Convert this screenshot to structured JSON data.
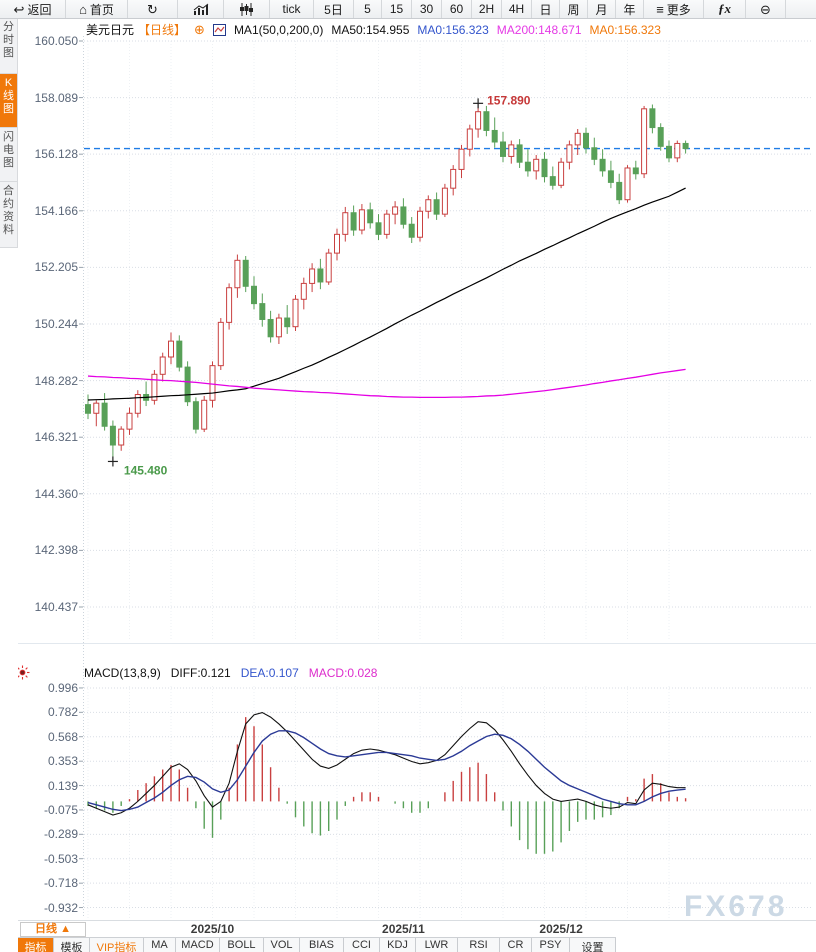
{
  "toolbar": {
    "items": [
      {
        "id": "back",
        "icon": "back-arrow",
        "label": "返回"
      },
      {
        "id": "home",
        "icon": "home",
        "label": "首页"
      },
      {
        "id": "refresh",
        "icon": "refresh",
        "label": ""
      },
      {
        "id": "chart-line",
        "icon": "bar-chart",
        "label": ""
      },
      {
        "id": "chart-candle",
        "icon": "candles",
        "label": ""
      },
      {
        "id": "tick",
        "label": "tick"
      },
      {
        "id": "5d",
        "label": "5日"
      },
      {
        "id": "m5",
        "label": "5"
      },
      {
        "id": "m15",
        "label": "15"
      },
      {
        "id": "m30",
        "label": "30"
      },
      {
        "id": "m60",
        "label": "60"
      },
      {
        "id": "h2",
        "label": "2H"
      },
      {
        "id": "h4",
        "label": "4H"
      },
      {
        "id": "day",
        "label": "日"
      },
      {
        "id": "week",
        "label": "周"
      },
      {
        "id": "month",
        "label": "月"
      },
      {
        "id": "year",
        "label": "年"
      },
      {
        "id": "more",
        "icon": "menu",
        "label": "更多"
      },
      {
        "id": "fx-functions",
        "icon": "fx",
        "label": ""
      },
      {
        "id": "zoom-out",
        "icon": "zoom-out",
        "label": ""
      }
    ]
  },
  "sidebar": {
    "tabs": [
      {
        "id": "time-share",
        "label": "分时图",
        "active": false
      },
      {
        "id": "kline",
        "label": "K线图",
        "active": true
      },
      {
        "id": "lightning",
        "label": "闪电图",
        "active": false
      },
      {
        "id": "contract-info",
        "label": "合约资料",
        "active": false
      }
    ]
  },
  "header": {
    "symbol": "美元日元",
    "period": "【日线】",
    "ma_params": "MA1(50,0,200,0)",
    "ma50": "MA50:154.955",
    "ma0_blue": "MA0:156.323",
    "ma200": "MA200:148.671",
    "ma0_orange": "MA0:156.323"
  },
  "macd_header": {
    "params": "MACD(13,8,9)",
    "diff": "DIFF:0.121",
    "dea": "DEA:0.107",
    "macd": "MACD:0.028"
  },
  "price_axis": [
    "160.050",
    "158.089",
    "156.128",
    "154.166",
    "152.205",
    "150.244",
    "148.282",
    "146.321",
    "144.360",
    "142.398",
    "140.437"
  ],
  "macd_axis": [
    "0.996",
    "0.782",
    "0.568",
    "0.353",
    "0.139",
    "-0.075",
    "-0.289",
    "-0.503",
    "-0.718",
    "-0.932"
  ],
  "annotations": {
    "high": "157.890",
    "low": "145.480"
  },
  "xaxis": {
    "period_label": "日线 ▲"
  },
  "bottom_tabs": [
    {
      "id": "indicators",
      "label": "指标",
      "style": "active"
    },
    {
      "id": "templates",
      "label": "模板",
      "style": ""
    },
    {
      "id": "vip-indicators",
      "label": "VIP指标",
      "style": "vip"
    },
    {
      "id": "ma",
      "label": "MA",
      "style": ""
    },
    {
      "id": "macd",
      "label": "MACD",
      "style": ""
    },
    {
      "id": "boll",
      "label": "BOLL",
      "style": ""
    },
    {
      "id": "vol",
      "label": "VOL",
      "style": ""
    },
    {
      "id": "bias",
      "label": "BIAS",
      "style": ""
    },
    {
      "id": "cci",
      "label": "CCI",
      "style": ""
    },
    {
      "id": "kdj",
      "label": "KDJ",
      "style": ""
    },
    {
      "id": "lwr",
      "label": "LWR",
      "style": ""
    },
    {
      "id": "rsi",
      "label": "RSI",
      "style": ""
    },
    {
      "id": "cr",
      "label": "CR",
      "style": ""
    },
    {
      "id": "psy",
      "label": "PSY",
      "style": ""
    },
    {
      "id": "settings",
      "label": "设置",
      "style": ""
    }
  ],
  "watermark": "FX678",
  "colors": {
    "up": "#c94040",
    "down": "#58a058",
    "ma50": "#000000",
    "ma200": "#e400e4",
    "diff": "#111111",
    "dea": "#2b3a96",
    "last_price_line": "#1f7ce6",
    "annotation_high": "#c63838",
    "annotation_low": "#4a9a4a",
    "accent_orange": "#f0780a",
    "header_blue": "#3355cc",
    "header_magenta": "#e53ae5",
    "macd_magenta": "#dd2ccc",
    "watermark": "#ccd9e5"
  },
  "chart_data": {
    "type": "candlestick",
    "symbol": "美元日元 (USD/JPY) 日线",
    "price_axis_ticks": [
      160.05,
      158.089,
      156.128,
      154.166,
      152.205,
      150.244,
      148.282,
      146.321,
      144.36,
      142.398,
      140.437
    ],
    "macd_axis_ticks": [
      0.996,
      0.782,
      0.568,
      0.353,
      0.139,
      -0.075,
      -0.289,
      -0.503,
      -0.718,
      -0.932
    ],
    "last_close": 156.323,
    "high_annotation": 157.89,
    "low_annotation": 145.48,
    "month_marks": [
      {
        "label": "2025/10",
        "index": 15
      },
      {
        "label": "2025/11",
        "index": 38
      },
      {
        "label": "2025/12",
        "index": 57
      }
    ],
    "candles": [
      [
        147.45,
        147.8,
        146.95,
        147.15
      ],
      [
        147.15,
        147.6,
        146.7,
        147.5
      ],
      [
        147.5,
        147.85,
        146.55,
        146.7
      ],
      [
        146.7,
        146.9,
        145.48,
        146.05
      ],
      [
        146.05,
        146.7,
        145.85,
        146.6
      ],
      [
        146.6,
        147.35,
        146.4,
        147.15
      ],
      [
        147.15,
        147.95,
        147.0,
        147.8
      ],
      [
        147.8,
        148.25,
        147.4,
        147.6
      ],
      [
        147.6,
        148.65,
        147.45,
        148.5
      ],
      [
        148.5,
        149.25,
        148.25,
        149.1
      ],
      [
        149.1,
        149.95,
        148.85,
        149.65
      ],
      [
        149.65,
        149.85,
        148.6,
        148.75
      ],
      [
        148.75,
        148.95,
        147.4,
        147.55
      ],
      [
        147.55,
        147.7,
        146.45,
        146.6
      ],
      [
        146.6,
        147.75,
        146.5,
        147.6
      ],
      [
        147.6,
        148.95,
        147.35,
        148.8
      ],
      [
        148.8,
        150.45,
        148.65,
        150.3
      ],
      [
        150.3,
        151.65,
        150.05,
        151.5
      ],
      [
        151.5,
        152.65,
        151.15,
        152.45
      ],
      [
        152.45,
        152.6,
        151.35,
        151.55
      ],
      [
        151.55,
        151.9,
        150.75,
        150.95
      ],
      [
        150.95,
        151.3,
        150.15,
        150.4
      ],
      [
        150.4,
        150.7,
        149.6,
        149.8
      ],
      [
        149.8,
        150.6,
        149.55,
        150.45
      ],
      [
        150.45,
        150.9,
        149.9,
        150.15
      ],
      [
        150.15,
        151.25,
        150.0,
        151.1
      ],
      [
        151.1,
        151.85,
        150.75,
        151.65
      ],
      [
        151.65,
        152.35,
        151.35,
        152.15
      ],
      [
        152.15,
        152.5,
        151.45,
        151.7
      ],
      [
        151.7,
        152.85,
        151.6,
        152.7
      ],
      [
        152.7,
        153.55,
        152.45,
        153.35
      ],
      [
        153.35,
        154.3,
        153.1,
        154.1
      ],
      [
        154.1,
        154.35,
        153.3,
        153.5
      ],
      [
        153.5,
        154.4,
        153.35,
        154.2
      ],
      [
        154.2,
        154.45,
        153.55,
        153.75
      ],
      [
        153.75,
        154.05,
        153.15,
        153.35
      ],
      [
        153.35,
        154.2,
        153.2,
        154.05
      ],
      [
        154.05,
        154.5,
        153.7,
        154.3
      ],
      [
        154.3,
        154.6,
        153.55,
        153.7
      ],
      [
        153.7,
        153.95,
        153.05,
        153.25
      ],
      [
        153.25,
        154.3,
        153.1,
        154.15
      ],
      [
        154.15,
        154.7,
        153.9,
        154.55
      ],
      [
        154.55,
        154.8,
        153.85,
        154.05
      ],
      [
        154.05,
        155.1,
        153.95,
        154.95
      ],
      [
        154.95,
        155.75,
        154.7,
        155.6
      ],
      [
        155.6,
        156.45,
        155.3,
        156.3
      ],
      [
        156.3,
        157.15,
        156.05,
        157.0
      ],
      [
        157.0,
        157.89,
        156.7,
        157.6
      ],
      [
        157.6,
        157.8,
        156.75,
        156.95
      ],
      [
        156.95,
        157.4,
        156.35,
        156.55
      ],
      [
        156.55,
        156.9,
        155.85,
        156.05
      ],
      [
        156.05,
        156.6,
        155.8,
        156.45
      ],
      [
        156.45,
        156.65,
        155.65,
        155.85
      ],
      [
        155.85,
        156.3,
        155.35,
        155.55
      ],
      [
        155.55,
        156.1,
        155.25,
        155.95
      ],
      [
        155.95,
        156.2,
        155.15,
        155.35
      ],
      [
        155.35,
        155.7,
        154.9,
        155.05
      ],
      [
        155.05,
        156.0,
        154.95,
        155.85
      ],
      [
        155.85,
        156.6,
        155.6,
        156.45
      ],
      [
        156.45,
        157.0,
        156.1,
        156.85
      ],
      [
        156.85,
        157.05,
        156.15,
        156.35
      ],
      [
        156.35,
        156.7,
        155.75,
        155.95
      ],
      [
        155.95,
        156.3,
        155.35,
        155.55
      ],
      [
        155.55,
        155.9,
        154.95,
        155.15
      ],
      [
        155.15,
        155.45,
        154.4,
        154.55
      ],
      [
        154.55,
        155.75,
        154.45,
        155.65
      ],
      [
        155.65,
        155.9,
        155.25,
        155.45
      ],
      [
        155.45,
        157.8,
        155.3,
        157.7
      ],
      [
        157.7,
        157.85,
        156.85,
        157.05
      ],
      [
        157.05,
        157.2,
        156.25,
        156.4
      ],
      [
        156.4,
        156.6,
        155.85,
        156.0
      ],
      [
        156.0,
        156.6,
        155.85,
        156.5
      ],
      [
        156.5,
        156.6,
        156.15,
        156.323
      ]
    ],
    "ma50": [
      147.61,
      147.62,
      147.63,
      147.65,
      147.66,
      147.67,
      147.69,
      147.7,
      147.72,
      147.74,
      147.76,
      147.77,
      147.79,
      147.81,
      147.83,
      147.85,
      147.89,
      147.93,
      147.96,
      148.0,
      148.09,
      148.18,
      148.27,
      148.36,
      148.48,
      148.59,
      148.71,
      148.82,
      148.95,
      149.09,
      149.22,
      149.36,
      149.5,
      149.65,
      149.79,
      149.94,
      150.09,
      150.25,
      150.4,
      150.55,
      150.69,
      150.84,
      150.99,
      151.13,
      151.28,
      151.42,
      151.56,
      151.7,
      151.84,
      151.99,
      152.14,
      152.28,
      152.43,
      152.56,
      152.69,
      152.83,
      152.96,
      153.1,
      153.23,
      153.37,
      153.5,
      153.63,
      153.77,
      153.9,
      154.02,
      154.13,
      154.24,
      154.36,
      154.47,
      154.57,
      154.67,
      154.81,
      154.955
    ],
    "ma200": [
      148.44,
      148.42,
      148.41,
      148.39,
      148.38,
      148.36,
      148.35,
      148.33,
      148.31,
      148.29,
      148.28,
      148.26,
      148.24,
      148.22,
      148.19,
      148.16,
      148.13,
      148.1,
      148.08,
      148.05,
      148.02,
      148.0,
      147.98,
      147.96,
      147.94,
      147.92,
      147.9,
      147.89,
      147.87,
      147.86,
      147.84,
      147.82,
      147.8,
      147.78,
      147.76,
      147.75,
      147.73,
      147.72,
      147.71,
      147.71,
      147.7,
      147.7,
      147.7,
      147.7,
      147.71,
      147.71,
      147.72,
      147.73,
      147.75,
      147.76,
      147.78,
      147.81,
      147.84,
      147.87,
      147.9,
      147.93,
      147.97,
      148.01,
      148.05,
      148.09,
      148.13,
      148.18,
      148.22,
      148.27,
      148.31,
      148.36,
      148.4,
      148.45,
      148.5,
      148.55,
      148.59,
      148.63,
      148.671
    ],
    "macd": {
      "diff": [
        -0.03,
        -0.06,
        -0.09,
        -0.12,
        -0.1,
        -0.06,
        0.0,
        0.07,
        0.14,
        0.22,
        0.3,
        0.33,
        0.28,
        0.18,
        0.05,
        -0.05,
        0.0,
        0.16,
        0.44,
        0.68,
        0.76,
        0.78,
        0.74,
        0.68,
        0.61,
        0.53,
        0.45,
        0.37,
        0.31,
        0.29,
        0.32,
        0.37,
        0.42,
        0.45,
        0.46,
        0.45,
        0.43,
        0.41,
        0.38,
        0.35,
        0.33,
        0.34,
        0.36,
        0.41,
        0.49,
        0.57,
        0.64,
        0.7,
        0.69,
        0.63,
        0.54,
        0.44,
        0.33,
        0.23,
        0.14,
        0.07,
        0.02,
        0.0,
        0.01,
        0.02,
        0.0,
        -0.03,
        -0.05,
        -0.06,
        -0.05,
        -0.01,
        -0.02,
        0.1,
        0.16,
        0.15,
        0.13,
        0.12,
        0.121
      ],
      "dea": [
        -0.01,
        -0.03,
        -0.05,
        -0.07,
        -0.08,
        -0.07,
        -0.05,
        -0.01,
        0.03,
        0.08,
        0.14,
        0.19,
        0.22,
        0.21,
        0.17,
        0.11,
        0.08,
        0.1,
        0.19,
        0.31,
        0.43,
        0.53,
        0.59,
        0.62,
        0.62,
        0.6,
        0.56,
        0.51,
        0.46,
        0.42,
        0.4,
        0.39,
        0.4,
        0.41,
        0.42,
        0.43,
        0.43,
        0.42,
        0.41,
        0.4,
        0.38,
        0.37,
        0.36,
        0.37,
        0.4,
        0.44,
        0.49,
        0.53,
        0.57,
        0.59,
        0.58,
        0.55,
        0.5,
        0.44,
        0.37,
        0.3,
        0.24,
        0.18,
        0.14,
        0.11,
        0.08,
        0.05,
        0.02,
        0.0,
        -0.02,
        -0.03,
        -0.03,
        0.0,
        0.04,
        0.07,
        0.09,
        0.1,
        0.107
      ],
      "hist_formula": "2*(diff-dea)"
    }
  }
}
